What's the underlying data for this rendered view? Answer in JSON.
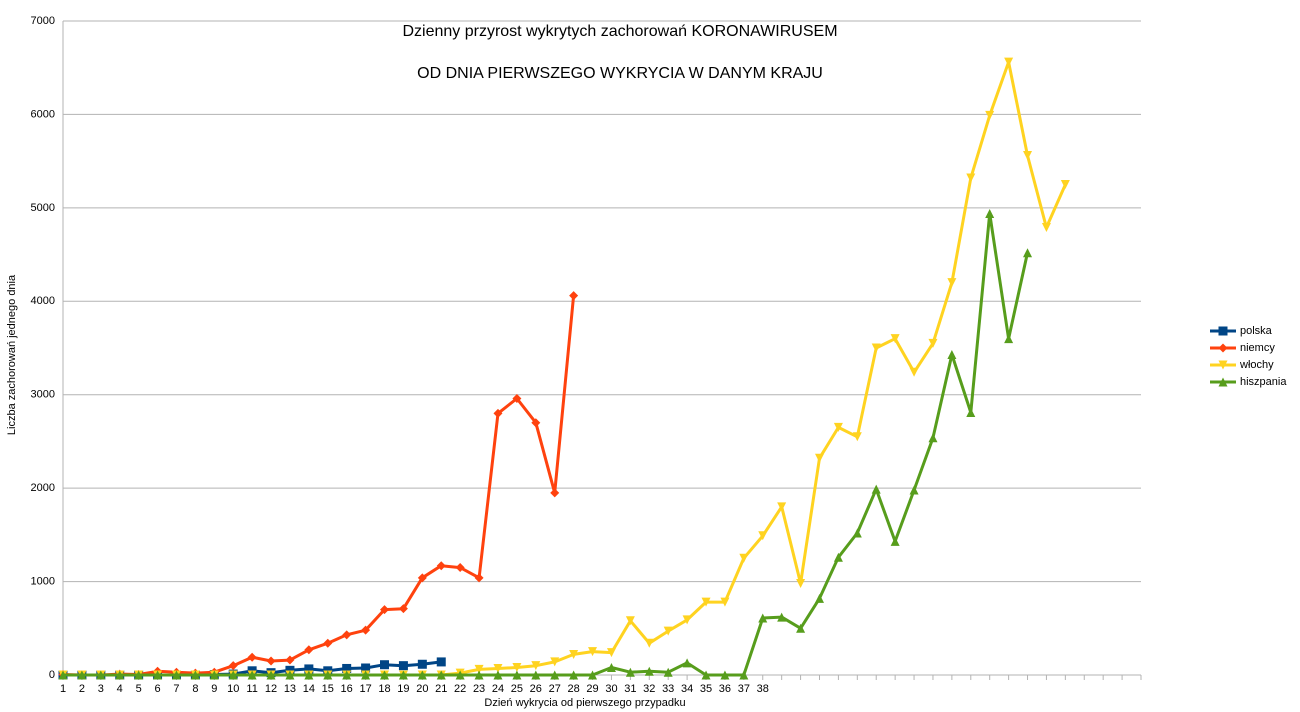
{
  "chart_data": {
    "type": "line",
    "title": "Dzienny przyrost wykrytych zachorowań KORONAWIRUSEM",
    "subtitle": "OD DNIA PIERWSZEGO WYKRYCIA W DANYM KRAJU",
    "x_label": "Dzień wykrycia od pierwszego przypadku",
    "y_label": "Liczba zachorowań jednego dnia",
    "categories": [
      "1",
      "2",
      "3",
      "4",
      "5",
      "6",
      "7",
      "8",
      "9",
      "10",
      "11",
      "12",
      "13",
      "14",
      "15",
      "16",
      "17",
      "18",
      "19",
      "20",
      "21",
      "22",
      "23",
      "24",
      "25",
      "26",
      "27",
      "28",
      "29",
      "30",
      "31",
      "32",
      "33",
      "34",
      "35",
      "36",
      "37",
      "38",
      null,
      null,
      null,
      null,
      null,
      null,
      null,
      null,
      null,
      null,
      null,
      null,
      null,
      null,
      null,
      null,
      null,
      null,
      null,
      null
    ],
    "series": [
      {
        "name": "polska",
        "color": "#004586",
        "marker": "square",
        "values": [
          0,
          0,
          0,
          0,
          0,
          0,
          0,
          0,
          5,
          10,
          45,
          25,
          50,
          65,
          45,
          70,
          75,
          110,
          100,
          115,
          140,
          null,
          null,
          null,
          null,
          null,
          null,
          null,
          null,
          null,
          null,
          null,
          null,
          null,
          null,
          null,
          null,
          null,
          null,
          null,
          null,
          null,
          null,
          null,
          null,
          null,
          null,
          null,
          null,
          null,
          null,
          null,
          null,
          null,
          null,
          null,
          null,
          null
        ]
      },
      {
        "name": "niemcy",
        "color": "#ff420e",
        "marker": "diamond",
        "values": [
          5,
          0,
          0,
          10,
          5,
          40,
          30,
          20,
          30,
          100,
          190,
          150,
          160,
          270,
          340,
          430,
          480,
          700,
          710,
          1040,
          1170,
          1150,
          1040,
          2800,
          2960,
          2700,
          1950,
          4060,
          null,
          null,
          null,
          null,
          null,
          null,
          null,
          null,
          null,
          null,
          null,
          null,
          null,
          null,
          null,
          null,
          null,
          null,
          null,
          null,
          null,
          null,
          null,
          null,
          null,
          null,
          null,
          null,
          null,
          null
        ]
      },
      {
        "name": "włochy",
        "color": "#ffd320",
        "marker": "triangle-down",
        "values": [
          0,
          0,
          0,
          0,
          0,
          0,
          0,
          0,
          0,
          0,
          0,
          0,
          0,
          0,
          0,
          0,
          0,
          0,
          0,
          0,
          0,
          20,
          60,
          70,
          80,
          100,
          140,
          220,
          250,
          240,
          580,
          340,
          470,
          590,
          780,
          780,
          1250,
          1490,
          1800,
          980,
          2320,
          2650,
          2550,
          3500,
          3600,
          3240,
          3550,
          4200,
          5320,
          5990,
          6560,
          5560,
          4790,
          5250,
          null,
          null,
          null,
          null
        ]
      },
      {
        "name": "hiszpania",
        "color": "#579d1c",
        "marker": "triangle-up",
        "values": [
          0,
          0,
          0,
          0,
          0,
          0,
          0,
          0,
          0,
          0,
          0,
          0,
          0,
          0,
          0,
          0,
          0,
          0,
          0,
          0,
          0,
          0,
          0,
          0,
          0,
          0,
          0,
          0,
          0,
          80,
          30,
          40,
          30,
          130,
          0,
          0,
          0,
          610,
          620,
          500,
          820,
          1260,
          1520,
          1990,
          1430,
          1980,
          2540,
          3430,
          2810,
          4940,
          3600,
          4520,
          null,
          null,
          null,
          null,
          null,
          null
        ]
      }
    ],
    "ylim": [
      0,
      7000
    ],
    "yticks": [
      0,
      1000,
      2000,
      3000,
      4000,
      5000,
      6000,
      7000
    ],
    "grid": true,
    "legend": "right"
  }
}
